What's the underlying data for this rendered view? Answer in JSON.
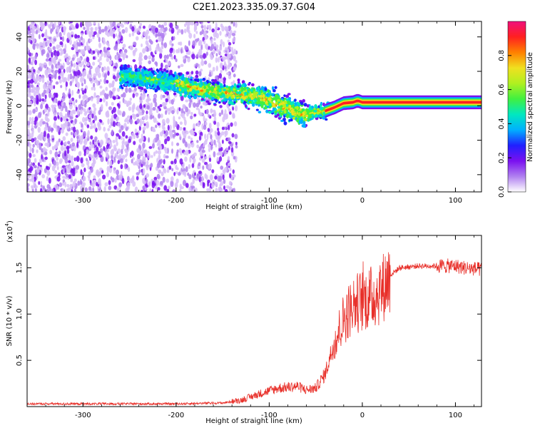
{
  "title": "C2E1.2023.335.09.37.G04",
  "chart_data": [
    {
      "type": "heatmap",
      "xlabel": "Height of straight line (km)",
      "ylabel": "Frequency (Hz)",
      "xlim": [
        -360,
        128
      ],
      "ylim": [
        -50,
        49
      ],
      "x_ticks": [
        -300,
        -200,
        -100,
        0,
        100
      ],
      "y_ticks": [
        -40,
        -20,
        0,
        20,
        40
      ],
      "x_tick_labels": [
        "-300",
        "-200",
        "-100",
        "0",
        "100"
      ],
      "y_tick_labels": [
        "-40",
        "-20",
        "0",
        "20",
        "40"
      ],
      "ridge": {
        "x": [
          -250,
          -200,
          -180,
          -160,
          -140,
          -120,
          -100,
          -80,
          -70,
          -60,
          -50,
          -40,
          -30,
          -20,
          -10,
          -5,
          0,
          20,
          50,
          100,
          128
        ],
        "freq": [
          17,
          13,
          10,
          8,
          7,
          6,
          3,
          -2,
          -4,
          -5,
          -4,
          -3,
          -1,
          1.5,
          2,
          3,
          2,
          2,
          2,
          2,
          2
        ]
      },
      "colorbar": {
        "label": "Normalized spectral amplitude",
        "range": [
          0,
          1
        ],
        "ticks": [
          0.0,
          0.2,
          0.4,
          0.6,
          0.8
        ],
        "tick_labels": [
          "0.0",
          "0.2",
          "0.4",
          "0.6",
          "0.8"
        ],
        "colors": [
          "#ffffff",
          "#b080f0",
          "#7a10f0",
          "#2020ff",
          "#00b0ff",
          "#00e8c0",
          "#40f040",
          "#b0f020",
          "#f0e020",
          "#ff8000",
          "#ff2020",
          "#f0107c"
        ]
      }
    },
    {
      "type": "line",
      "xlabel": "Height of straight line (km)",
      "ylabel": "SNR (10 * v/v)",
      "y_scale_label": "(x10",
      "y_scale_exp": "4",
      "y_scale_close": ")",
      "xlim": [
        -360,
        128
      ],
      "ylim": [
        0,
        1.85
      ],
      "x_ticks": [
        -300,
        -200,
        -100,
        0,
        100
      ],
      "y_ticks": [
        0.5,
        1.0,
        1.5
      ],
      "x_tick_labels": [
        "-300",
        "-200",
        "-100",
        "0",
        "100"
      ],
      "y_tick_labels": [
        "0.5",
        "1.0",
        "1.5"
      ],
      "color": "#e8302a",
      "trend": {
        "x": [
          -360,
          -250,
          -200,
          -150,
          -130,
          -110,
          -90,
          -70,
          -60,
          -50,
          -40,
          -30,
          -20,
          -10,
          0,
          10,
          20,
          30,
          40,
          60,
          80,
          100,
          110,
          128
        ],
        "y": [
          0.03,
          0.03,
          0.03,
          0.04,
          0.07,
          0.14,
          0.2,
          0.22,
          0.18,
          0.2,
          0.35,
          0.7,
          0.95,
          1.1,
          1.15,
          1.18,
          1.25,
          1.42,
          1.5,
          1.52,
          1.52,
          1.52,
          1.5,
          1.48
        ]
      }
    }
  ]
}
